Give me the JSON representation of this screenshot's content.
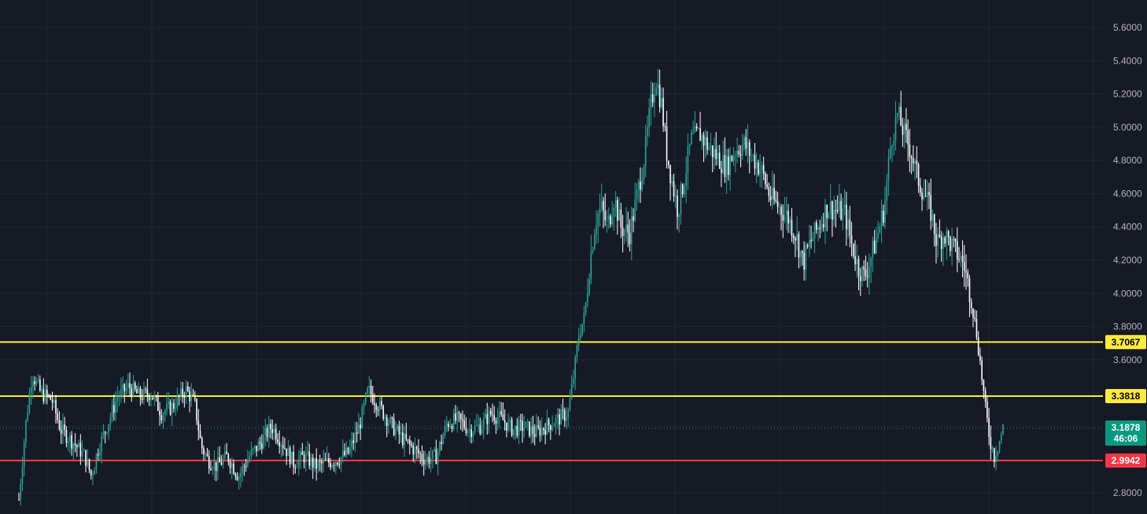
{
  "chart_data": {
    "type": "candlestick",
    "title": "",
    "xlabel": "",
    "ylabel": "",
    "ylim": [
      2.74,
      5.72
    ],
    "y_ticks": [
      "2.8000",
      "3.0000",
      "3.2000",
      "3.4000",
      "3.6000",
      "3.8000",
      "4.0000",
      "4.2000",
      "4.4000",
      "4.6000",
      "4.8000",
      "5.0000",
      "5.2000",
      "5.4000",
      "5.6000"
    ],
    "grid": true,
    "colors": {
      "background": "#161a25",
      "grid": "#232733",
      "axis_text": "#b2b5be",
      "up": "#26a69a",
      "down": "#ffffff",
      "resistance": "#ffeb3b",
      "support": "#f23645",
      "current": "#089981"
    },
    "horizontal_levels": [
      {
        "value": 3.7067,
        "label": "3.7067",
        "color": "#ffeb3b"
      },
      {
        "value": 3.3818,
        "label": "3.3818",
        "color": "#ffeb3b"
      },
      {
        "value": 2.9942,
        "label": "2.9942",
        "color": "#f23645"
      }
    ],
    "current_price": {
      "value": 3.1878,
      "label": "3.1878",
      "countdown": "46:06"
    },
    "price_path": [
      [
        0,
        2.76
      ],
      [
        0.006,
        3.2
      ],
      [
        0.012,
        3.52
      ],
      [
        0.02,
        3.4
      ],
      [
        0.03,
        3.36
      ],
      [
        0.038,
        3.18
      ],
      [
        0.05,
        3.1
      ],
      [
        0.06,
        3.02
      ],
      [
        0.066,
        2.9
      ],
      [
        0.072,
        3.06
      ],
      [
        0.08,
        3.2
      ],
      [
        0.09,
        3.38
      ],
      [
        0.1,
        3.44
      ],
      [
        0.11,
        3.38
      ],
      [
        0.12,
        3.4
      ],
      [
        0.13,
        3.28
      ],
      [
        0.14,
        3.32
      ],
      [
        0.152,
        3.42
      ],
      [
        0.16,
        3.34
      ],
      [
        0.166,
        3.08
      ],
      [
        0.172,
        3.0
      ],
      [
        0.18,
        2.96
      ],
      [
        0.19,
        3.02
      ],
      [
        0.2,
        2.9
      ],
      [
        0.21,
        3.02
      ],
      [
        0.22,
        3.1
      ],
      [
        0.23,
        3.2
      ],
      [
        0.24,
        3.1
      ],
      [
        0.25,
        2.98
      ],
      [
        0.26,
        3.02
      ],
      [
        0.27,
        2.96
      ],
      [
        0.28,
        2.98
      ],
      [
        0.29,
        3.0
      ],
      [
        0.3,
        3.04
      ],
      [
        0.31,
        3.2
      ],
      [
        0.318,
        3.42
      ],
      [
        0.33,
        3.3
      ],
      [
        0.34,
        3.2
      ],
      [
        0.35,
        3.12
      ],
      [
        0.36,
        3.06
      ],
      [
        0.37,
        3.0
      ],
      [
        0.38,
        3.02
      ],
      [
        0.39,
        3.22
      ],
      [
        0.4,
        3.24
      ],
      [
        0.41,
        3.18
      ],
      [
        0.42,
        3.2
      ],
      [
        0.43,
        3.28
      ],
      [
        0.44,
        3.24
      ],
      [
        0.45,
        3.18
      ],
      [
        0.46,
        3.2
      ],
      [
        0.47,
        3.16
      ],
      [
        0.48,
        3.2
      ],
      [
        0.49,
        3.24
      ],
      [
        0.5,
        3.28
      ],
      [
        0.505,
        3.5
      ],
      [
        0.51,
        3.76
      ],
      [
        0.515,
        3.86
      ],
      [
        0.52,
        4.2
      ],
      [
        0.525,
        4.44
      ],
      [
        0.53,
        4.52
      ],
      [
        0.536,
        4.4
      ],
      [
        0.542,
        4.58
      ],
      [
        0.548,
        4.4
      ],
      [
        0.556,
        4.36
      ],
      [
        0.562,
        4.56
      ],
      [
        0.57,
        4.84
      ],
      [
        0.575,
        5.12
      ],
      [
        0.58,
        5.3
      ],
      [
        0.585,
        5.14
      ],
      [
        0.59,
        4.84
      ],
      [
        0.595,
        4.66
      ],
      [
        0.6,
        4.5
      ],
      [
        0.606,
        4.7
      ],
      [
        0.612,
        4.92
      ],
      [
        0.62,
        4.96
      ],
      [
        0.628,
        4.88
      ],
      [
        0.636,
        4.82
      ],
      [
        0.644,
        4.76
      ],
      [
        0.652,
        4.86
      ],
      [
        0.66,
        4.9
      ],
      [
        0.668,
        4.82
      ],
      [
        0.676,
        4.74
      ],
      [
        0.684,
        4.58
      ],
      [
        0.692,
        4.52
      ],
      [
        0.7,
        4.46
      ],
      [
        0.708,
        4.34
      ],
      [
        0.714,
        4.18
      ],
      [
        0.72,
        4.3
      ],
      [
        0.728,
        4.4
      ],
      [
        0.736,
        4.52
      ],
      [
        0.744,
        4.5
      ],
      [
        0.752,
        4.48
      ],
      [
        0.758,
        4.3
      ],
      [
        0.764,
        4.16
      ],
      [
        0.77,
        4.1
      ],
      [
        0.776,
        4.22
      ],
      [
        0.782,
        4.36
      ],
      [
        0.788,
        4.52
      ],
      [
        0.794,
        4.92
      ],
      [
        0.8,
        5.08
      ],
      [
        0.806,
        4.96
      ],
      [
        0.812,
        4.86
      ],
      [
        0.818,
        4.7
      ],
      [
        0.824,
        4.6
      ],
      [
        0.83,
        4.5
      ],
      [
        0.836,
        4.3
      ],
      [
        0.842,
        4.36
      ],
      [
        0.848,
        4.3
      ],
      [
        0.854,
        4.24
      ],
      [
        0.86,
        4.18
      ],
      [
        0.866,
        4.0
      ],
      [
        0.872,
        3.76
      ],
      [
        0.876,
        3.54
      ],
      [
        0.88,
        3.3
      ],
      [
        0.884,
        3.12
      ],
      [
        0.888,
        3.02
      ],
      [
        0.892,
        3.1
      ],
      [
        0.896,
        3.19
      ]
    ]
  }
}
